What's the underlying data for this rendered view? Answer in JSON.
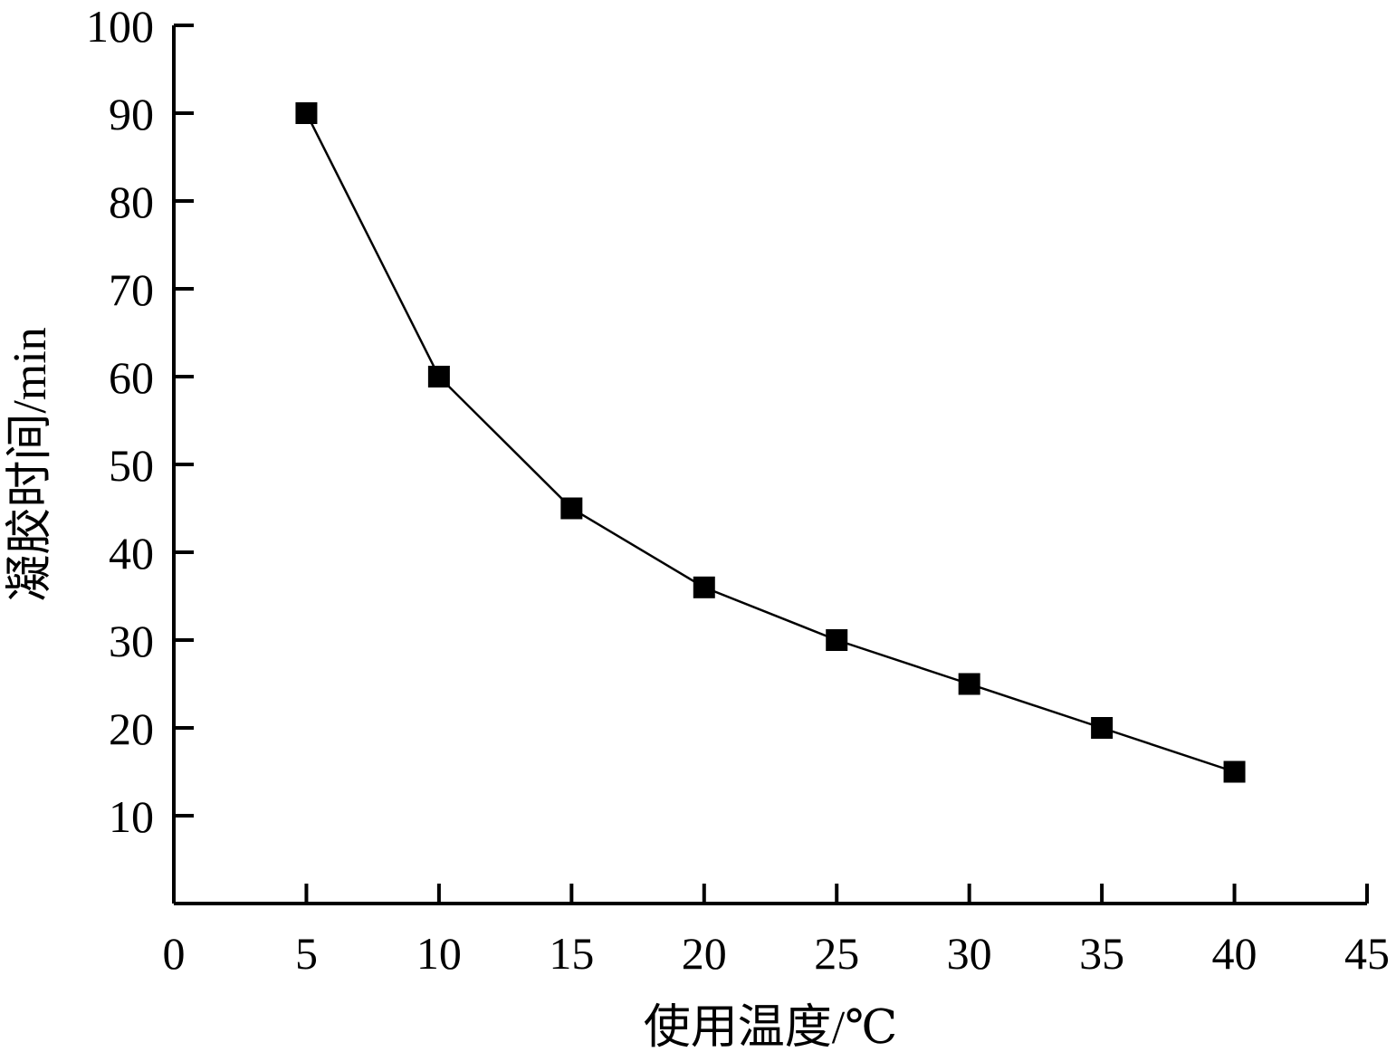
{
  "chart_data": {
    "type": "line",
    "xlabel": "使用温度/℃",
    "ylabel": "凝胶时间/min",
    "xlim": [
      0,
      45
    ],
    "ylim": [
      0,
      100
    ],
    "x_ticks": [
      "0",
      "5",
      "10",
      "15",
      "20",
      "25",
      "30",
      "35",
      "40",
      "45"
    ],
    "y_ticks": [
      "10",
      "20",
      "30",
      "40",
      "50",
      "60",
      "70",
      "80",
      "90",
      "100"
    ],
    "series": [
      {
        "marker": "square",
        "color": "#000000",
        "x": [
          5,
          10,
          15,
          20,
          25,
          30,
          35,
          40
        ],
        "y": [
          90,
          60,
          45,
          36,
          30,
          25,
          20,
          15
        ]
      }
    ],
    "grid": false,
    "legend": "none"
  }
}
